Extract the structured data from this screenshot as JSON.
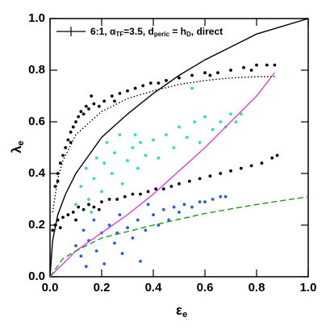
{
  "chart_data": {
    "type": "scatter",
    "legend_parts": [
      "6:1, α",
      "TF",
      "=3.5, d",
      "peric",
      " = h",
      "D",
      ", direct"
    ],
    "xlabel": [
      "ε",
      "e"
    ],
    "ylabel": [
      "λ",
      "e"
    ],
    "xlim": [
      0,
      1
    ],
    "ylim": [
      0,
      1
    ],
    "xticks": [
      {
        "value": 0,
        "label": "0.0"
      },
      0.2,
      0.4,
      0.6,
      0.8,
      {
        "value": 1,
        "label": "1.0"
      }
    ],
    "yticks": [
      {
        "value": 0,
        "label": "0.0"
      },
      0.2,
      0.4,
      0.6,
      0.8,
      {
        "value": 1,
        "label": "1.0"
      }
    ],
    "series": [
      {
        "mode": "markers",
        "color": "#000000",
        "x": [
          0.02,
          0.03,
          0.04,
          0.05,
          0.06,
          0.07,
          0.08,
          0.09,
          0.1,
          0.11,
          0.12,
          0.13,
          0.14,
          0.15,
          0.17,
          0.19,
          0.21,
          0.24,
          0.27,
          0.3,
          0.33,
          0.36,
          0.39,
          0.42,
          0.45,
          0.5,
          0.55,
          0.6,
          0.65,
          0.7,
          0.75,
          0.8,
          0.84,
          0.87,
          0.03,
          0.08,
          0.16,
          0.25,
          0.62,
          0.78
        ],
        "values": [
          0.35,
          0.4,
          0.44,
          0.47,
          0.5,
          0.53,
          0.56,
          0.58,
          0.6,
          0.62,
          0.64,
          0.63,
          0.66,
          0.65,
          0.67,
          0.66,
          0.68,
          0.7,
          0.71,
          0.72,
          0.73,
          0.74,
          0.75,
          0.75,
          0.76,
          0.77,
          0.78,
          0.79,
          0.79,
          0.8,
          0.81,
          0.82,
          0.82,
          0.82,
          0.37,
          0.52,
          0.7,
          0.68,
          0.78,
          0.8
        ]
      },
      {
        "mode": "markers",
        "color": "#000000",
        "x": [
          0.01,
          0.02,
          0.03,
          0.05,
          0.07,
          0.09,
          0.11,
          0.13,
          0.15,
          0.17,
          0.2,
          0.23,
          0.26,
          0.29,
          0.32,
          0.35,
          0.38,
          0.41,
          0.44,
          0.47,
          0.5,
          0.54,
          0.58,
          0.62,
          0.66,
          0.7,
          0.74,
          0.78,
          0.82,
          0.86,
          0.88,
          0.04,
          0.1,
          0.19
        ],
        "values": [
          0.18,
          0.2,
          0.22,
          0.23,
          0.24,
          0.25,
          0.27,
          0.26,
          0.28,
          0.27,
          0.29,
          0.3,
          0.3,
          0.31,
          0.32,
          0.32,
          0.33,
          0.34,
          0.34,
          0.35,
          0.36,
          0.37,
          0.38,
          0.39,
          0.4,
          0.41,
          0.42,
          0.43,
          0.44,
          0.46,
          0.47,
          0.19,
          0.22,
          0.26
        ]
      },
      {
        "mode": "markers",
        "color": "#22e8a0",
        "x": [
          0.1,
          0.12,
          0.14,
          0.15,
          0.17,
          0.18,
          0.2,
          0.21,
          0.22,
          0.24,
          0.25,
          0.27,
          0.28,
          0.3,
          0.32,
          0.34,
          0.35,
          0.37,
          0.4,
          0.42,
          0.45,
          0.48,
          0.5,
          0.53,
          0.56,
          0.58,
          0.6,
          0.63,
          0.66,
          0.68,
          0.7,
          0.72,
          0.74,
          0.55,
          0.33,
          0.16
        ],
        "values": [
          0.28,
          0.35,
          0.42,
          0.3,
          0.38,
          0.46,
          0.33,
          0.44,
          0.52,
          0.4,
          0.48,
          0.55,
          0.36,
          0.45,
          0.5,
          0.42,
          0.52,
          0.47,
          0.53,
          0.46,
          0.55,
          0.5,
          0.58,
          0.54,
          0.6,
          0.52,
          0.62,
          0.57,
          0.6,
          0.58,
          0.63,
          0.6,
          0.63,
          0.73,
          0.55,
          0.25
        ]
      },
      {
        "mode": "markers",
        "color": "#1e5ee8",
        "x": [
          0.1,
          0.12,
          0.13,
          0.15,
          0.17,
          0.18,
          0.2,
          0.21,
          0.23,
          0.25,
          0.27,
          0.28,
          0.3,
          0.32,
          0.34,
          0.35,
          0.37,
          0.4,
          0.42,
          0.44,
          0.46,
          0.48,
          0.5,
          0.52,
          0.55,
          0.58,
          0.6,
          0.63,
          0.66,
          0.68,
          0.38,
          0.26,
          0.14
        ],
        "values": [
          0.12,
          0.08,
          0.18,
          0.14,
          0.22,
          0.1,
          0.17,
          0.05,
          0.2,
          0.13,
          0.24,
          0.09,
          0.19,
          0.15,
          0.22,
          0.06,
          0.18,
          0.24,
          0.2,
          0.26,
          0.22,
          0.27,
          0.25,
          0.28,
          0.27,
          0.29,
          0.29,
          0.3,
          0.31,
          0.31,
          0.28,
          0.17,
          0.04
        ]
      },
      {
        "mode": "line",
        "color": "#000000",
        "dash": "solid",
        "x": [
          0,
          0.01,
          0.03,
          0.06,
          0.1,
          0.15,
          0.2,
          0.3,
          0.4,
          0.5,
          0.6,
          0.7,
          0.8,
          0.9,
          1.0
        ],
        "values": [
          0,
          0.14,
          0.24,
          0.32,
          0.4,
          0.47,
          0.54,
          0.63,
          0.71,
          0.78,
          0.84,
          0.89,
          0.94,
          0.97,
          1.0
        ]
      },
      {
        "mode": "line",
        "color": "#000000",
        "dash": "dotted",
        "x": [
          0.01,
          0.03,
          0.05,
          0.1,
          0.2,
          0.3,
          0.4,
          0.5,
          0.6,
          0.7,
          0.8,
          0.87
        ],
        "values": [
          0.25,
          0.38,
          0.45,
          0.55,
          0.64,
          0.69,
          0.72,
          0.745,
          0.76,
          0.77,
          0.775,
          0.775
        ]
      },
      {
        "mode": "line",
        "color": "#e040e0",
        "dash": "solid",
        "x": [
          0,
          0.1,
          0.2,
          0.3,
          0.4,
          0.5,
          0.6,
          0.7,
          0.8,
          0.87
        ],
        "values": [
          0,
          0.1,
          0.17,
          0.24,
          0.32,
          0.41,
          0.5,
          0.6,
          0.7,
          0.79
        ]
      },
      {
        "mode": "line",
        "color": "#1a9a1a",
        "dash": "dashed",
        "x": [
          0,
          0.05,
          0.1,
          0.2,
          0.4,
          0.6,
          0.8,
          1.0
        ],
        "values": [
          0,
          0.07,
          0.1,
          0.15,
          0.2,
          0.245,
          0.28,
          0.31
        ]
      }
    ]
  }
}
